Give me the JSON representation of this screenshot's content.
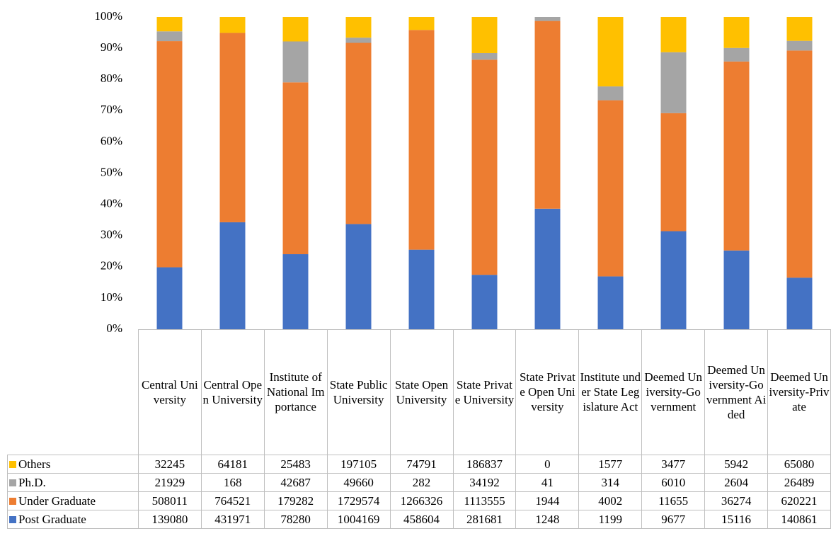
{
  "chart_data": {
    "type": "bar",
    "stack": "percent",
    "categories": [
      "Central University",
      "Central Open University",
      "Institute of National Importance",
      "State Public University",
      "State Open University",
      "State Private University",
      "State Private Open University",
      "Institute under State Legislature Act",
      "Deemed University-Government",
      "Deemed University-Government Aided",
      "Deemed University-Private"
    ],
    "series": [
      {
        "name": "Others",
        "color": "#ffc000",
        "values": [
          32245,
          64181,
          25483,
          197105,
          74791,
          186837,
          0,
          1577,
          3477,
          5942,
          65080
        ]
      },
      {
        "name": "Ph.D.",
        "color": "#a5a5a5",
        "values": [
          21929,
          168,
          42687,
          49660,
          282,
          34192,
          41,
          314,
          6010,
          2604,
          26489
        ]
      },
      {
        "name": "Under Graduate",
        "color": "#ed7d31",
        "values": [
          508011,
          764521,
          179282,
          1729574,
          1266326,
          1113555,
          1944,
          4002,
          11655,
          36274,
          620221
        ]
      },
      {
        "name": "Post Graduate",
        "color": "#4472c4",
        "values": [
          139080,
          431971,
          78280,
          1004169,
          458604,
          281681,
          1248,
          1199,
          9677,
          15116,
          140861
        ]
      }
    ],
    "ylim": [
      0,
      100
    ],
    "yticks": [
      {
        "value": 0,
        "label": "0%"
      },
      {
        "value": 10,
        "label": "10%"
      },
      {
        "value": 20,
        "label": "20%"
      },
      {
        "value": 30,
        "label": "30%"
      },
      {
        "value": 40,
        "label": "40%"
      },
      {
        "value": 50,
        "label": "50%"
      },
      {
        "value": 60,
        "label": "60%"
      },
      {
        "value": 70,
        "label": "70%"
      },
      {
        "value": 80,
        "label": "80%"
      },
      {
        "value": 90,
        "label": "90%"
      },
      {
        "value": 100,
        "label": "100%"
      }
    ],
    "grid": false,
    "data_table": true
  }
}
